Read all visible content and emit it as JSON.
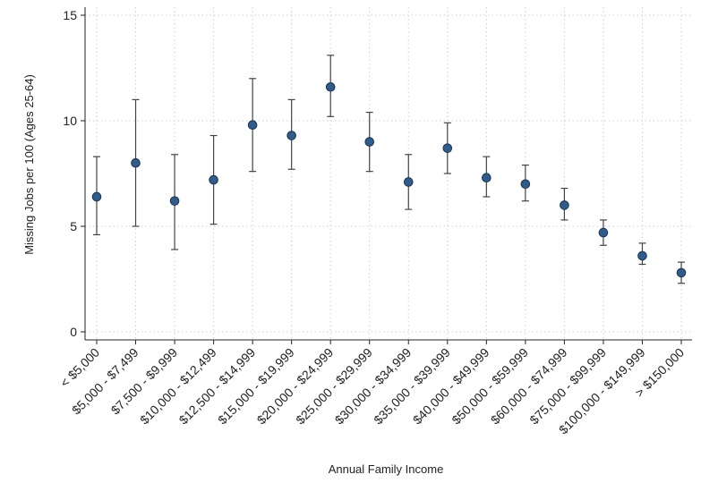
{
  "chart_data": {
    "type": "scatter",
    "title": "",
    "xlabel": "Annual Family Income",
    "ylabel": "Missing Jobs per 100 (Ages 25-64)",
    "ylim": [
      0,
      15
    ],
    "yticks": [
      0,
      5,
      10,
      15
    ],
    "grid": true,
    "categories": [
      "< $5,000",
      "$5,000 - $7,499",
      "$7,500 - $9,999",
      "$10,000 - $12,499",
      "$12,500 - $14,999",
      "$15,000 - $19,999",
      "$20,000 - $24,999",
      "$25,000 - $29,999",
      "$30,000 - $34,999",
      "$35,000 - $39,999",
      "$40,000 - $49,999",
      "$50,000 - $59,999",
      "$60,000 - $74,999",
      "$75,000 - $99,999",
      "$100,000 - $149,999",
      "> $150,000"
    ],
    "series": [
      {
        "values": [
          6.4,
          8.0,
          6.2,
          7.2,
          9.8,
          9.3,
          11.6,
          9.0,
          7.1,
          8.7,
          7.3,
          7.0,
          6.0,
          4.7,
          3.6,
          2.8
        ],
        "lower": [
          4.6,
          5.0,
          3.9,
          5.1,
          7.6,
          7.7,
          10.2,
          7.6,
          5.8,
          7.5,
          6.4,
          6.2,
          5.3,
          4.1,
          3.2,
          2.3
        ],
        "upper": [
          8.3,
          11.0,
          8.4,
          9.3,
          12.0,
          11.0,
          13.1,
          10.4,
          8.4,
          9.9,
          8.3,
          7.9,
          6.8,
          5.3,
          4.2,
          3.3
        ]
      }
    ],
    "colors": {
      "marker": "#2f5c8a",
      "marker_edge": "#1a3550",
      "error_bar": "#444444",
      "grid": "#d0d0d0"
    }
  }
}
